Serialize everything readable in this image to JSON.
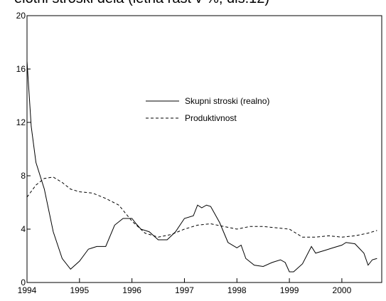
{
  "chart_data": {
    "type": "line",
    "title": "elotni stroski dela (letna rast v %, dls.12)",
    "xlim": [
      1994,
      2000.76
    ],
    "xticks": [
      1994,
      1995,
      1996,
      1997,
      1998,
      1999,
      2000
    ],
    "ylim": [
      0,
      20
    ],
    "yticks": [
      0,
      4,
      8,
      12,
      16,
      20
    ],
    "series": [
      {
        "name": "Skupni stroski (realno)",
        "color": "#000000",
        "dash": "solid",
        "x": [
          1994.0,
          1994.08,
          1994.17,
          1994.33,
          1994.5,
          1994.67,
          1994.83,
          1995.0,
          1995.17,
          1995.33,
          1995.5,
          1995.67,
          1995.83,
          1996.0,
          1996.08,
          1996.17,
          1996.33,
          1996.5,
          1996.67,
          1996.83,
          1997.0,
          1997.17,
          1997.25,
          1997.33,
          1997.42,
          1997.5,
          1997.67,
          1997.83,
          1998.0,
          1998.08,
          1998.17,
          1998.33,
          1998.5,
          1998.67,
          1998.83,
          1998.92,
          1999.0,
          1999.08,
          1999.25,
          1999.42,
          1999.5,
          1999.67,
          1999.83,
          2000.0,
          2000.08,
          2000.25,
          2000.42,
          2000.5,
          2000.58,
          2000.67
        ],
        "values": [
          16.6,
          11.7,
          9.0,
          7.0,
          3.8,
          1.8,
          1.0,
          1.6,
          2.5,
          2.7,
          2.7,
          4.3,
          4.8,
          4.8,
          4.4,
          4.0,
          3.8,
          3.2,
          3.2,
          3.8,
          4.8,
          5.0,
          5.8,
          5.6,
          5.8,
          5.7,
          4.5,
          3.0,
          2.6,
          2.8,
          1.8,
          1.3,
          1.2,
          1.5,
          1.7,
          1.5,
          0.8,
          0.8,
          1.4,
          2.7,
          2.2,
          2.4,
          2.6,
          2.8,
          3.0,
          2.9,
          2.2,
          1.3,
          1.7,
          1.8
        ]
      },
      {
        "name": "Produktivnost",
        "color": "#000000",
        "dash": "dashed",
        "x": [
          1994.0,
          1994.17,
          1994.33,
          1994.5,
          1994.67,
          1994.83,
          1995.0,
          1995.25,
          1995.5,
          1995.75,
          1996.0,
          1996.25,
          1996.5,
          1996.75,
          1997.0,
          1997.25,
          1997.5,
          1997.75,
          1998.0,
          1998.25,
          1998.5,
          1998.75,
          1999.0,
          1999.25,
          1999.5,
          1999.75,
          2000.0,
          2000.25,
          2000.5,
          2000.67
        ],
        "values": [
          6.4,
          7.3,
          7.8,
          7.9,
          7.5,
          7.0,
          6.8,
          6.7,
          6.3,
          5.8,
          4.6,
          3.7,
          3.4,
          3.6,
          4.0,
          4.3,
          4.4,
          4.2,
          4.0,
          4.2,
          4.2,
          4.1,
          4.0,
          3.4,
          3.4,
          3.5,
          3.4,
          3.5,
          3.7,
          3.9
        ]
      }
    ]
  }
}
